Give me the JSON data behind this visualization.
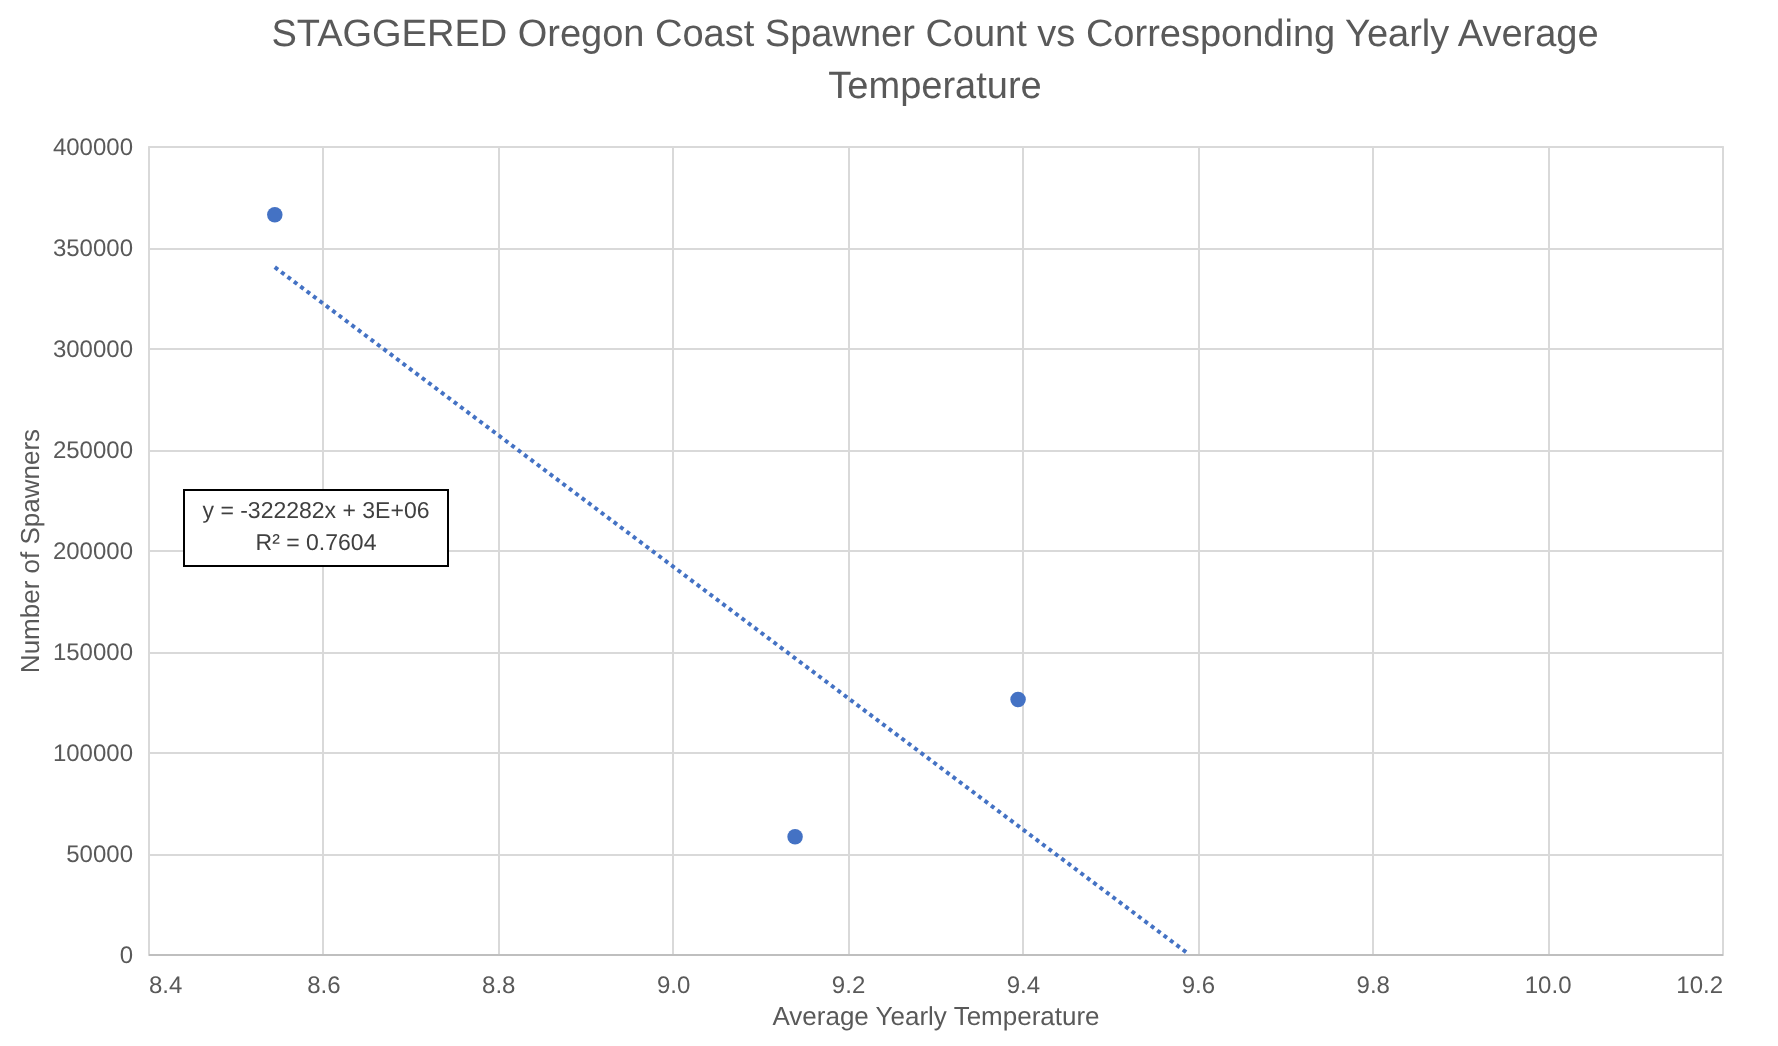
{
  "chart_data": {
    "type": "scatter",
    "title": "STAGGERED Oregon Coast Spawner Count vs Corresponding Yearly Average Temperature",
    "xlabel": "Average Yearly Temperature",
    "ylabel": "Number of Spawners",
    "series": [
      {
        "type": "scatter",
        "color": "#4472c4",
        "x": [
          8.545,
          9.14,
          9.395
        ],
        "values": [
          366000,
          58000,
          126000
        ],
        "marker": "circle"
      },
      {
        "type": "line",
        "color": "#4472c4",
        "x": [
          8.545,
          9.59
        ],
        "values": [
          340000,
          0
        ],
        "marker": "none",
        "line_style": "dotted"
      }
    ],
    "annotations": [
      "y = -322282x + 3E+06",
      "R² = 0.7604"
    ],
    "xlim": [
      8.4,
      10.2
    ],
    "xticks": [
      8.4,
      8.6,
      8.8,
      {
        "value": 9,
        "label": "9.0"
      },
      9.2,
      9.4,
      9.6,
      9.8,
      {
        "value": 10,
        "label": "10.0"
      },
      10.2
    ],
    "ylim": [
      0,
      400000
    ],
    "yticks": [
      0,
      50000,
      100000,
      150000,
      200000,
      250000,
      300000,
      350000,
      400000
    ],
    "grid": true
  }
}
